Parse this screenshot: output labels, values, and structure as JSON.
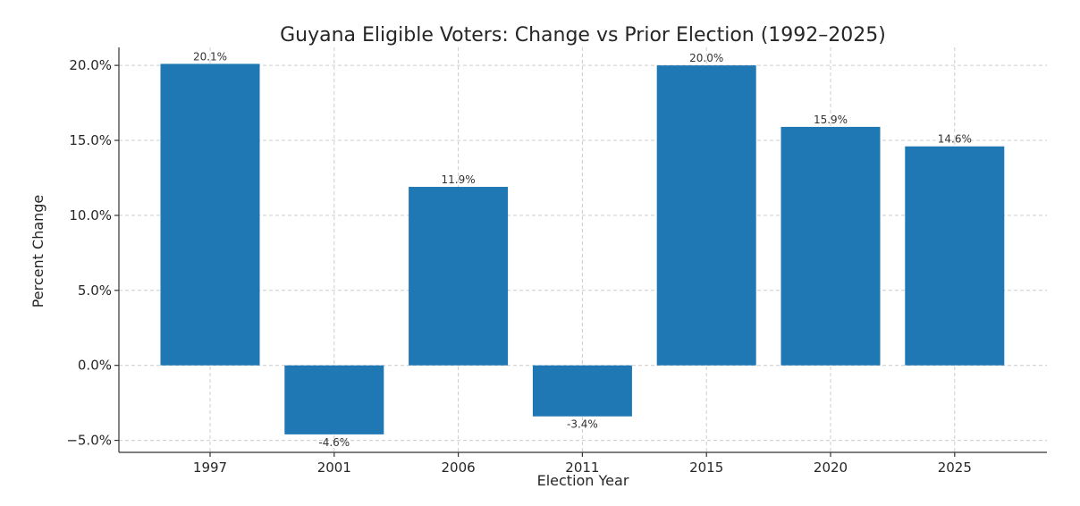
{
  "chart_data": {
    "type": "bar",
    "title": "Guyana Eligible Voters: Change vs Prior Election (1992–2025)",
    "xlabel": "Election Year",
    "ylabel": "Percent Change",
    "categories": [
      "1997",
      "2001",
      "2006",
      "2011",
      "2015",
      "2020",
      "2025"
    ],
    "values": [
      20.1,
      -4.6,
      11.9,
      -3.4,
      20.0,
      15.9,
      14.6
    ],
    "data_labels": [
      "20.1%",
      "-4.6%",
      "11.9%",
      "-3.4%",
      "20.0%",
      "15.9%",
      "14.6%"
    ],
    "yticks": [
      -5,
      0,
      5,
      10,
      15,
      20
    ],
    "ytick_labels": [
      "−5.0%",
      "0.0%",
      "5.0%",
      "10.0%",
      "15.0%",
      "20.0%"
    ],
    "ylim": [
      -5.8,
      21.2
    ],
    "grid": true,
    "legend": "none",
    "bar_color": "#1f77b4"
  }
}
